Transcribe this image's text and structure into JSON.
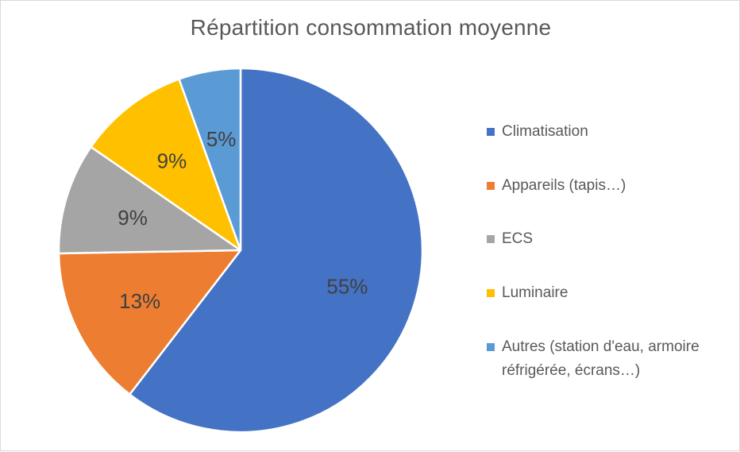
{
  "chart_data": {
    "type": "pie",
    "title": "Répartition consommation moyenne",
    "categories": [
      "Climatisation",
      "Appareils (tapis…)",
      "ECS",
      "Luminaire",
      "Autres (station d'eau, armoire réfrigérée, écrans…)"
    ],
    "values": [
      55,
      13,
      9,
      9,
      5
    ],
    "labels": [
      "55%",
      "13%",
      "9%",
      "9%",
      "5%"
    ],
    "colors": [
      "#4472C4",
      "#ED7D31",
      "#A5A5A5",
      "#FFC000",
      "#5B9BD5"
    ],
    "legend_position": "right"
  }
}
